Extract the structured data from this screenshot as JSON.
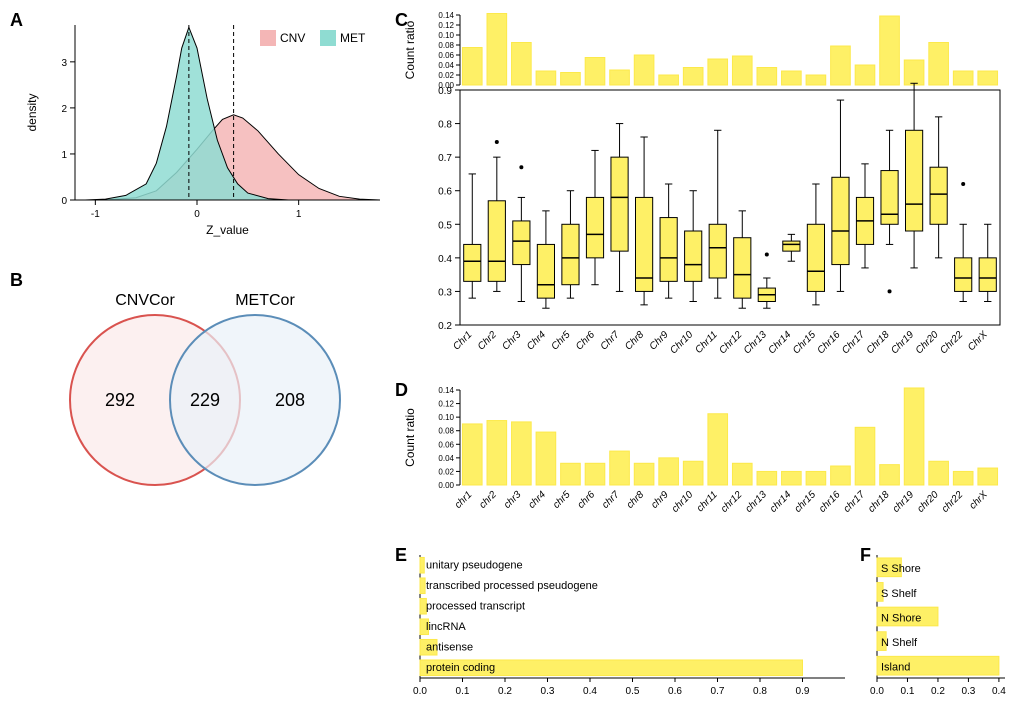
{
  "colors": {
    "cnv": "#f4b6b6",
    "met": "#8fdcd2",
    "curve_stroke": "#000000",
    "dash": "#000000",
    "venn_cnv": "#fbe9e9",
    "venn_cnv_stroke": "#d9534f",
    "venn_met": "#eaf1f8",
    "venn_met_stroke": "#5b8db8",
    "yellow": "#fef066",
    "yellow_stroke": "#fce94b",
    "box_stroke": "#000000",
    "bg": "#ffffff",
    "grid": "#e0e0e0"
  },
  "panelA": {
    "label": "A",
    "x_label": "Z_value",
    "y_label": "density",
    "xlim": [
      -1.2,
      1.8
    ],
    "ylim": [
      0,
      3.8
    ],
    "xticks": [
      -1,
      0,
      1
    ],
    "yticks": [
      0,
      1,
      2,
      3
    ],
    "dash_x": [
      -0.08,
      0.36
    ],
    "legend": [
      {
        "label": "CNV",
        "color_key": "cnv"
      },
      {
        "label": "MET",
        "color_key": "met"
      }
    ],
    "met_curve": [
      {
        "x": -1.1,
        "y": 0.0
      },
      {
        "x": -0.9,
        "y": 0.02
      },
      {
        "x": -0.7,
        "y": 0.1
      },
      {
        "x": -0.5,
        "y": 0.35
      },
      {
        "x": -0.4,
        "y": 0.8
      },
      {
        "x": -0.3,
        "y": 1.6
      },
      {
        "x": -0.2,
        "y": 2.7
      },
      {
        "x": -0.15,
        "y": 3.3
      },
      {
        "x": -0.08,
        "y": 3.75
      },
      {
        "x": 0.0,
        "y": 3.3
      },
      {
        "x": 0.1,
        "y": 2.2
      },
      {
        "x": 0.2,
        "y": 1.3
      },
      {
        "x": 0.3,
        "y": 0.7
      },
      {
        "x": 0.4,
        "y": 0.35
      },
      {
        "x": 0.5,
        "y": 0.15
      },
      {
        "x": 0.7,
        "y": 0.03
      },
      {
        "x": 0.9,
        "y": 0.0
      }
    ],
    "cnv_curve": [
      {
        "x": -0.9,
        "y": 0.0
      },
      {
        "x": -0.6,
        "y": 0.05
      },
      {
        "x": -0.4,
        "y": 0.2
      },
      {
        "x": -0.2,
        "y": 0.6
      },
      {
        "x": 0.0,
        "y": 1.1
      },
      {
        "x": 0.15,
        "y": 1.5
      },
      {
        "x": 0.25,
        "y": 1.75
      },
      {
        "x": 0.36,
        "y": 1.85
      },
      {
        "x": 0.45,
        "y": 1.78
      },
      {
        "x": 0.6,
        "y": 1.5
      },
      {
        "x": 0.8,
        "y": 1.0
      },
      {
        "x": 1.0,
        "y": 0.55
      },
      {
        "x": 1.2,
        "y": 0.25
      },
      {
        "x": 1.4,
        "y": 0.08
      },
      {
        "x": 1.6,
        "y": 0.02
      },
      {
        "x": 1.8,
        "y": 0.0
      }
    ]
  },
  "panelB": {
    "label": "B",
    "left_label": "CNVCor",
    "right_label": "METCor",
    "left_count": 292,
    "mid_count": 229,
    "right_count": 208
  },
  "panelC": {
    "label": "C",
    "bar_ylabel": "Count ratio",
    "bar_ylim": [
      0,
      0.14
    ],
    "bar_yticks": [
      0.0,
      0.02,
      0.04,
      0.06,
      0.08,
      0.1,
      0.12,
      0.14
    ],
    "box_ylim": [
      0.2,
      0.9
    ],
    "box_yticks": [
      0.2,
      0.3,
      0.4,
      0.5,
      0.6,
      0.7,
      0.8,
      0.9
    ],
    "categories": [
      "Chr1",
      "Chr2",
      "Chr3",
      "Chr4",
      "Chr5",
      "Chr6",
      "Chr7",
      "Chr8",
      "Chr9",
      "Chr10",
      "Chr11",
      "Chr12",
      "Chr13",
      "Chr14",
      "Chr15",
      "Chr16",
      "Chr17",
      "Chr18",
      "Chr19",
      "Chr20",
      "Chr22",
      "ChrX"
    ],
    "bar_values": [
      0.075,
      0.143,
      0.085,
      0.028,
      0.025,
      0.055,
      0.03,
      0.06,
      0.02,
      0.035,
      0.052,
      0.058,
      0.035,
      0.028,
      0.02,
      0.078,
      0.04,
      0.138,
      0.05,
      0.085,
      0.028,
      0.028
    ],
    "boxes": [
      {
        "min": 0.28,
        "q1": 0.33,
        "med": 0.39,
        "q3": 0.44,
        "max": 0.65,
        "out": []
      },
      {
        "min": 0.3,
        "q1": 0.33,
        "med": 0.39,
        "q3": 0.57,
        "max": 0.7,
        "out": [
          0.745
        ]
      },
      {
        "min": 0.27,
        "q1": 0.38,
        "med": 0.45,
        "q3": 0.51,
        "max": 0.58,
        "out": [
          0.67
        ]
      },
      {
        "min": 0.25,
        "q1": 0.28,
        "med": 0.32,
        "q3": 0.44,
        "max": 0.54,
        "out": []
      },
      {
        "min": 0.28,
        "q1": 0.32,
        "med": 0.4,
        "q3": 0.5,
        "max": 0.6,
        "out": []
      },
      {
        "min": 0.32,
        "q1": 0.4,
        "med": 0.47,
        "q3": 0.58,
        "max": 0.72,
        "out": []
      },
      {
        "min": 0.3,
        "q1": 0.42,
        "med": 0.58,
        "q3": 0.7,
        "max": 0.8,
        "out": []
      },
      {
        "min": 0.26,
        "q1": 0.3,
        "med": 0.34,
        "q3": 0.58,
        "max": 0.76,
        "out": []
      },
      {
        "min": 0.28,
        "q1": 0.33,
        "med": 0.4,
        "q3": 0.52,
        "max": 0.62,
        "out": []
      },
      {
        "min": 0.27,
        "q1": 0.33,
        "med": 0.38,
        "q3": 0.48,
        "max": 0.6,
        "out": []
      },
      {
        "min": 0.28,
        "q1": 0.34,
        "med": 0.43,
        "q3": 0.5,
        "max": 0.78,
        "out": []
      },
      {
        "min": 0.25,
        "q1": 0.28,
        "med": 0.35,
        "q3": 0.46,
        "max": 0.54,
        "out": []
      },
      {
        "min": 0.25,
        "q1": 0.27,
        "med": 0.29,
        "q3": 0.31,
        "max": 0.34,
        "out": [
          0.41
        ]
      },
      {
        "min": 0.39,
        "q1": 0.42,
        "med": 0.44,
        "q3": 0.45,
        "max": 0.47,
        "out": []
      },
      {
        "min": 0.26,
        "q1": 0.3,
        "med": 0.36,
        "q3": 0.5,
        "max": 0.62,
        "out": []
      },
      {
        "min": 0.3,
        "q1": 0.38,
        "med": 0.48,
        "q3": 0.64,
        "max": 0.87,
        "out": []
      },
      {
        "min": 0.37,
        "q1": 0.44,
        "med": 0.51,
        "q3": 0.58,
        "max": 0.68,
        "out": []
      },
      {
        "min": 0.44,
        "q1": 0.5,
        "med": 0.53,
        "q3": 0.66,
        "max": 0.78,
        "out": [
          0.3
        ]
      },
      {
        "min": 0.37,
        "q1": 0.48,
        "med": 0.56,
        "q3": 0.78,
        "max": 0.92,
        "out": []
      },
      {
        "min": 0.4,
        "q1": 0.5,
        "med": 0.59,
        "q3": 0.67,
        "max": 0.82,
        "out": []
      },
      {
        "min": 0.27,
        "q1": 0.3,
        "med": 0.34,
        "q3": 0.4,
        "max": 0.5,
        "out": [
          0.62
        ]
      },
      {
        "min": 0.27,
        "q1": 0.3,
        "med": 0.34,
        "q3": 0.4,
        "max": 0.5,
        "out": []
      }
    ]
  },
  "panelD": {
    "label": "D",
    "ylabel": "Count ratio",
    "ylim": [
      0,
      0.14
    ],
    "yticks": [
      0.0,
      0.02,
      0.04,
      0.06,
      0.08,
      0.1,
      0.12,
      0.14
    ],
    "categories": [
      "chr1",
      "chr2",
      "chr3",
      "chr4",
      "chr5",
      "chr6",
      "chr7",
      "chr8",
      "chr9",
      "chr10",
      "chr11",
      "chr12",
      "chr13",
      "chr14",
      "chr15",
      "chr16",
      "chr17",
      "chr18",
      "chr19",
      "chr20",
      "chr22",
      "chrX"
    ],
    "values": [
      0.09,
      0.095,
      0.093,
      0.078,
      0.032,
      0.032,
      0.05,
      0.032,
      0.04,
      0.035,
      0.105,
      0.032,
      0.02,
      0.02,
      0.02,
      0.028,
      0.085,
      0.03,
      0.143,
      0.035,
      0.02,
      0.025
    ]
  },
  "panelE": {
    "label": "E",
    "xlim": [
      0,
      1.0
    ],
    "xticks": [
      0.0,
      0.1,
      0.2,
      0.3,
      0.4,
      0.5,
      0.6,
      0.7,
      0.8,
      0.9
    ],
    "items": [
      {
        "label": "unitary pseudogene",
        "value": 0.01
      },
      {
        "label": "transcribed processed pseudogene",
        "value": 0.012
      },
      {
        "label": "processed transcript",
        "value": 0.015
      },
      {
        "label": "lincRNA",
        "value": 0.02
      },
      {
        "label": "antisense",
        "value": 0.04
      },
      {
        "label": "protein coding",
        "value": 0.9
      }
    ]
  },
  "panelF": {
    "label": "F",
    "xlim": [
      0,
      0.42
    ],
    "xticks": [
      0.0,
      0.1,
      0.2,
      0.3,
      0.4
    ],
    "items": [
      {
        "label": "S Shore",
        "value": 0.08
      },
      {
        "label": "S Shelf",
        "value": 0.02
      },
      {
        "label": "N Shore",
        "value": 0.2
      },
      {
        "label": "N Shelf",
        "value": 0.03
      },
      {
        "label": "Island",
        "value": 0.4
      }
    ]
  }
}
